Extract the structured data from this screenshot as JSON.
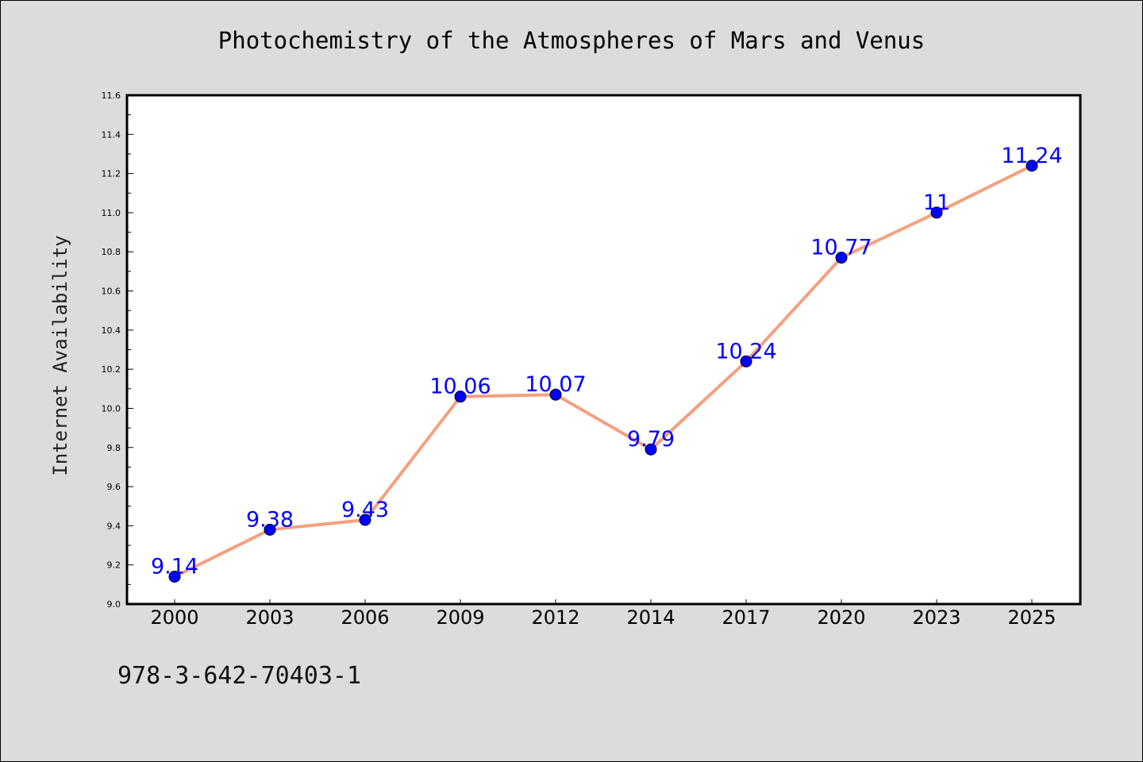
{
  "chart_data": {
    "type": "line",
    "title": "Photochemistry of the Atmospheres of Mars and Venus",
    "xlabel": "",
    "ylabel": "Internet Availability",
    "categories": [
      "2000",
      "2003",
      "2006",
      "2009",
      "2012",
      "2014",
      "2017",
      "2020",
      "2023",
      "2025"
    ],
    "series": [
      {
        "values": [
          9.14,
          9.38,
          9.43,
          10.06,
          10.07,
          9.79,
          10.24,
          10.77,
          11,
          11.24
        ],
        "data_labels": [
          "9.14",
          "9.38",
          "9.43",
          "10.06",
          "10.07",
          "9.79",
          "10.24",
          "10.77",
          "11",
          "11.24"
        ],
        "line_color": "#f4a07f",
        "marker_color": "#0000ff"
      }
    ],
    "ylim": [
      9.0,
      11.6
    ],
    "yticks": [
      "9.0",
      "9.2",
      "9.4",
      "9.6",
      "9.8",
      "10.0",
      "10.2",
      "10.4",
      "10.6",
      "10.8",
      "11.0",
      "11.2",
      "11.4",
      "11.6"
    ],
    "grid": false,
    "legend": "none"
  },
  "footer": {
    "isbn": "978-3-642-70403-1"
  },
  "colors": {
    "background": "#dcdcdc",
    "plot_area": "#ffffff",
    "line": "#f4a07f",
    "marker": "#0000ff",
    "data_label": "#0000ff"
  }
}
